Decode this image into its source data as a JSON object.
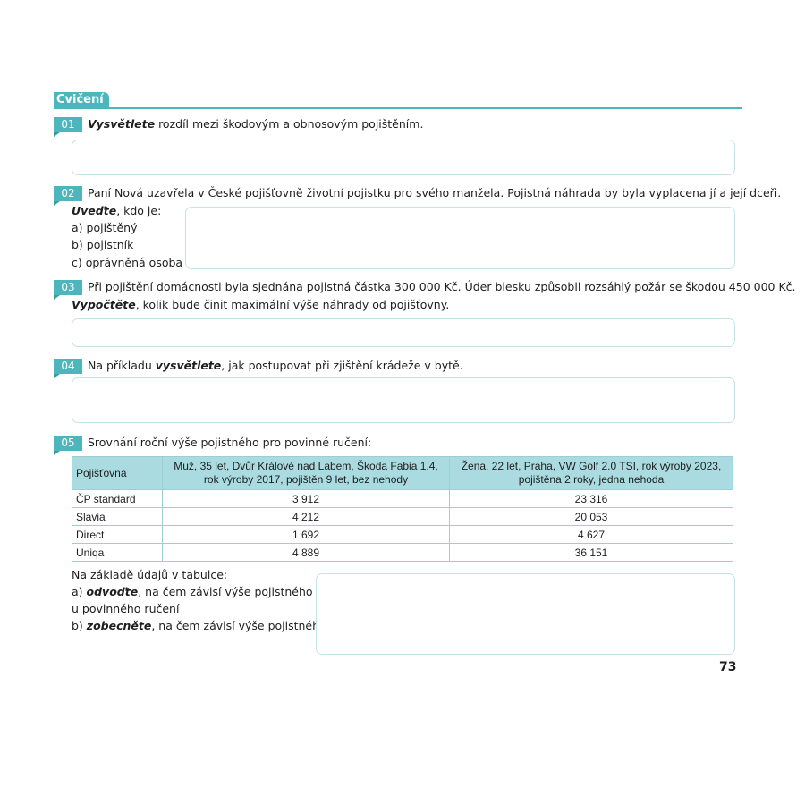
{
  "section_title": "Cvičení",
  "page_number": "73",
  "accent_color": "#4db6bd",
  "exercises": [
    {
      "num": "01",
      "bold": "Vysvětlete",
      "text": " rozdíl mezi škodovým a obnosovým pojištěním."
    },
    {
      "num": "02",
      "line1": "Paní Nová uzavřela v České pojišťovně životní pojistku pro svého manžela. Pojistná náhrada by byla vyplacena jí a její dceři.",
      "bold": "Uveďte",
      "text": ", kdo je:",
      "items": [
        "a) pojištěný",
        "b) pojistník",
        "c) oprávněná osoba"
      ]
    },
    {
      "num": "03",
      "line1": "Při pojištění domácnosti byla sjednána pojistná částka 300 000 Kč. Úder blesku způsobil rozsáhlý požár se škodou 450 000 Kč.",
      "bold": "Vypočtěte",
      "text": ", kolik bude činit maximální výše náhrady od pojišťovny."
    },
    {
      "num": "04",
      "pre": "Na příkladu ",
      "bold": "vysvětlete",
      "text": ", jak postupovat při zjištění krádeže v bytě."
    },
    {
      "num": "05",
      "line1": "Srovnání roční výše pojistného pro povinné ručení:",
      "table": {
        "headers": [
          "Pojišťovna",
          "Muž, 35 let, Dvůr Králové nad Labem, Škoda Fabia 1.4, rok výroby 2017, pojištěn 9 let, bez nehody",
          "Žena, 22 let, Praha, VW Golf 2.0 TSI, rok výroby 2023, pojištěna 2 roky, jedna nehoda"
        ],
        "rows": [
          [
            "ČP standard",
            "3 912",
            "23 316"
          ],
          [
            "Slavia",
            "4 212",
            "20 053"
          ],
          [
            "Direct",
            "1 692",
            "4 627"
          ],
          [
            "Uniqa",
            "4 889",
            "36 151"
          ]
        ]
      },
      "after": "Na základě údajů v tabulce:",
      "a_pre": "a) ",
      "a_bold": "odvoďte",
      "a_text": ", na čem závisí výše pojistného",
      "a_line2": "u povinného ručení",
      "b_pre": "b) ",
      "b_bold": "zobecněte",
      "b_text": ", na čem závisí výše pojistného"
    }
  ]
}
